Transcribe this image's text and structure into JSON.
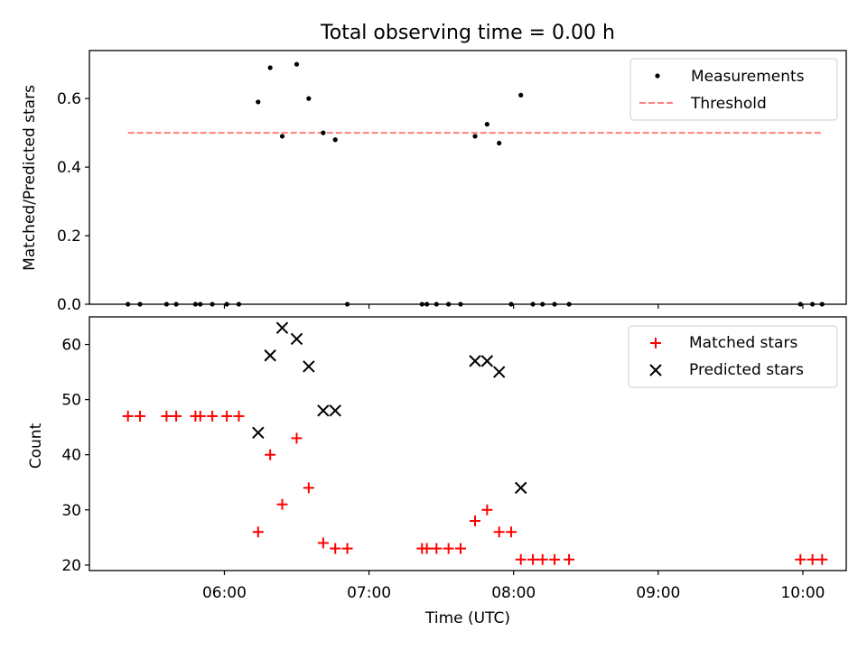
{
  "figure": {
    "title": "Total observing time = 0.00 h",
    "xlabel": "Time (UTC)"
  },
  "chart_data": [
    {
      "type": "scatter",
      "ylabel": "Matched/Predicted stars",
      "xlim": [
        "05:04",
        "10:18"
      ],
      "ylim": [
        0,
        0.74
      ],
      "yticks": [
        0.0,
        0.2,
        0.4,
        0.6
      ],
      "ytick_labels": [
        "0.0",
        "0.2",
        "0.4",
        "0.6"
      ],
      "legend_position": "upper right",
      "series": [
        {
          "name": "Measurements",
          "marker": "dot",
          "color": "#000000",
          "points": [
            [
              "05:20",
              0
            ],
            [
              "05:25",
              0
            ],
            [
              "05:36",
              0
            ],
            [
              "05:40",
              0
            ],
            [
              "05:48",
              0
            ],
            [
              "05:50",
              0
            ],
            [
              "05:55",
              0
            ],
            [
              "06:01",
              0
            ],
            [
              "06:06",
              0
            ],
            [
              "06:14",
              0.59
            ],
            [
              "06:19",
              0.69
            ],
            [
              "06:24",
              0.49
            ],
            [
              "06:30",
              0.7
            ],
            [
              "06:35",
              0.6
            ],
            [
              "06:41",
              0.5
            ],
            [
              "06:46",
              0.48
            ],
            [
              "06:51",
              0
            ],
            [
              "07:22",
              0
            ],
            [
              "07:24",
              0
            ],
            [
              "07:28",
              0
            ],
            [
              "07:33",
              0
            ],
            [
              "07:38",
              0
            ],
            [
              "07:44",
              0.49
            ],
            [
              "07:49",
              0.525
            ],
            [
              "07:54",
              0.47
            ],
            [
              "07:59",
              0
            ],
            [
              "08:03",
              0.61
            ],
            [
              "08:08",
              0
            ],
            [
              "08:12",
              0
            ],
            [
              "08:17",
              0
            ],
            [
              "08:23",
              0
            ],
            [
              "09:59",
              0
            ],
            [
              "10:04",
              0
            ],
            [
              "10:08",
              0
            ]
          ]
        },
        {
          "name": "Threshold",
          "type": "line",
          "style": "dashed",
          "color": "#ff7f7f",
          "x": [
            "05:20",
            "10:08"
          ],
          "y": [
            0.5,
            0.5
          ]
        }
      ]
    },
    {
      "type": "scatter",
      "ylabel": "Count",
      "xlim": [
        "05:04",
        "10:18"
      ],
      "ylim": [
        19,
        65
      ],
      "yticks": [
        20,
        30,
        40,
        50,
        60
      ],
      "ytick_labels": [
        "20",
        "30",
        "40",
        "50",
        "60"
      ],
      "xticks": [
        "06:00",
        "07:00",
        "08:00",
        "09:00",
        "10:00"
      ],
      "xtick_labels": [
        "06:00",
        "07:00",
        "08:00",
        "09:00",
        "10:00"
      ],
      "legend_position": "upper right",
      "series": [
        {
          "name": "Matched stars",
          "marker": "plus",
          "color": "#ff0000",
          "points": [
            [
              "05:20",
              47
            ],
            [
              "05:25",
              47
            ],
            [
              "05:36",
              47
            ],
            [
              "05:40",
              47
            ],
            [
              "05:48",
              47
            ],
            [
              "05:50",
              47
            ],
            [
              "05:55",
              47
            ],
            [
              "06:01",
              47
            ],
            [
              "06:06",
              47
            ],
            [
              "06:14",
              26
            ],
            [
              "06:19",
              40
            ],
            [
              "06:24",
              31
            ],
            [
              "06:30",
              43
            ],
            [
              "06:35",
              34
            ],
            [
              "06:41",
              24
            ],
            [
              "06:46",
              23
            ],
            [
              "06:51",
              23
            ],
            [
              "07:22",
              23
            ],
            [
              "07:24",
              23
            ],
            [
              "07:28",
              23
            ],
            [
              "07:33",
              23
            ],
            [
              "07:38",
              23
            ],
            [
              "07:44",
              28
            ],
            [
              "07:49",
              30
            ],
            [
              "07:54",
              26
            ],
            [
              "07:59",
              26
            ],
            [
              "08:03",
              21
            ],
            [
              "08:08",
              21
            ],
            [
              "08:12",
              21
            ],
            [
              "08:17",
              21
            ],
            [
              "08:23",
              21
            ],
            [
              "09:59",
              21
            ],
            [
              "10:04",
              21
            ],
            [
              "10:08",
              21
            ]
          ]
        },
        {
          "name": "Predicted stars",
          "marker": "x",
          "color": "#000000",
          "points": [
            [
              "06:14",
              44
            ],
            [
              "06:19",
              58
            ],
            [
              "06:24",
              63
            ],
            [
              "06:30",
              61
            ],
            [
              "06:35",
              56
            ],
            [
              "06:41",
              48
            ],
            [
              "06:46",
              48
            ],
            [
              "07:44",
              57
            ],
            [
              "07:49",
              57
            ],
            [
              "07:54",
              55
            ],
            [
              "08:03",
              34
            ]
          ]
        }
      ]
    }
  ]
}
